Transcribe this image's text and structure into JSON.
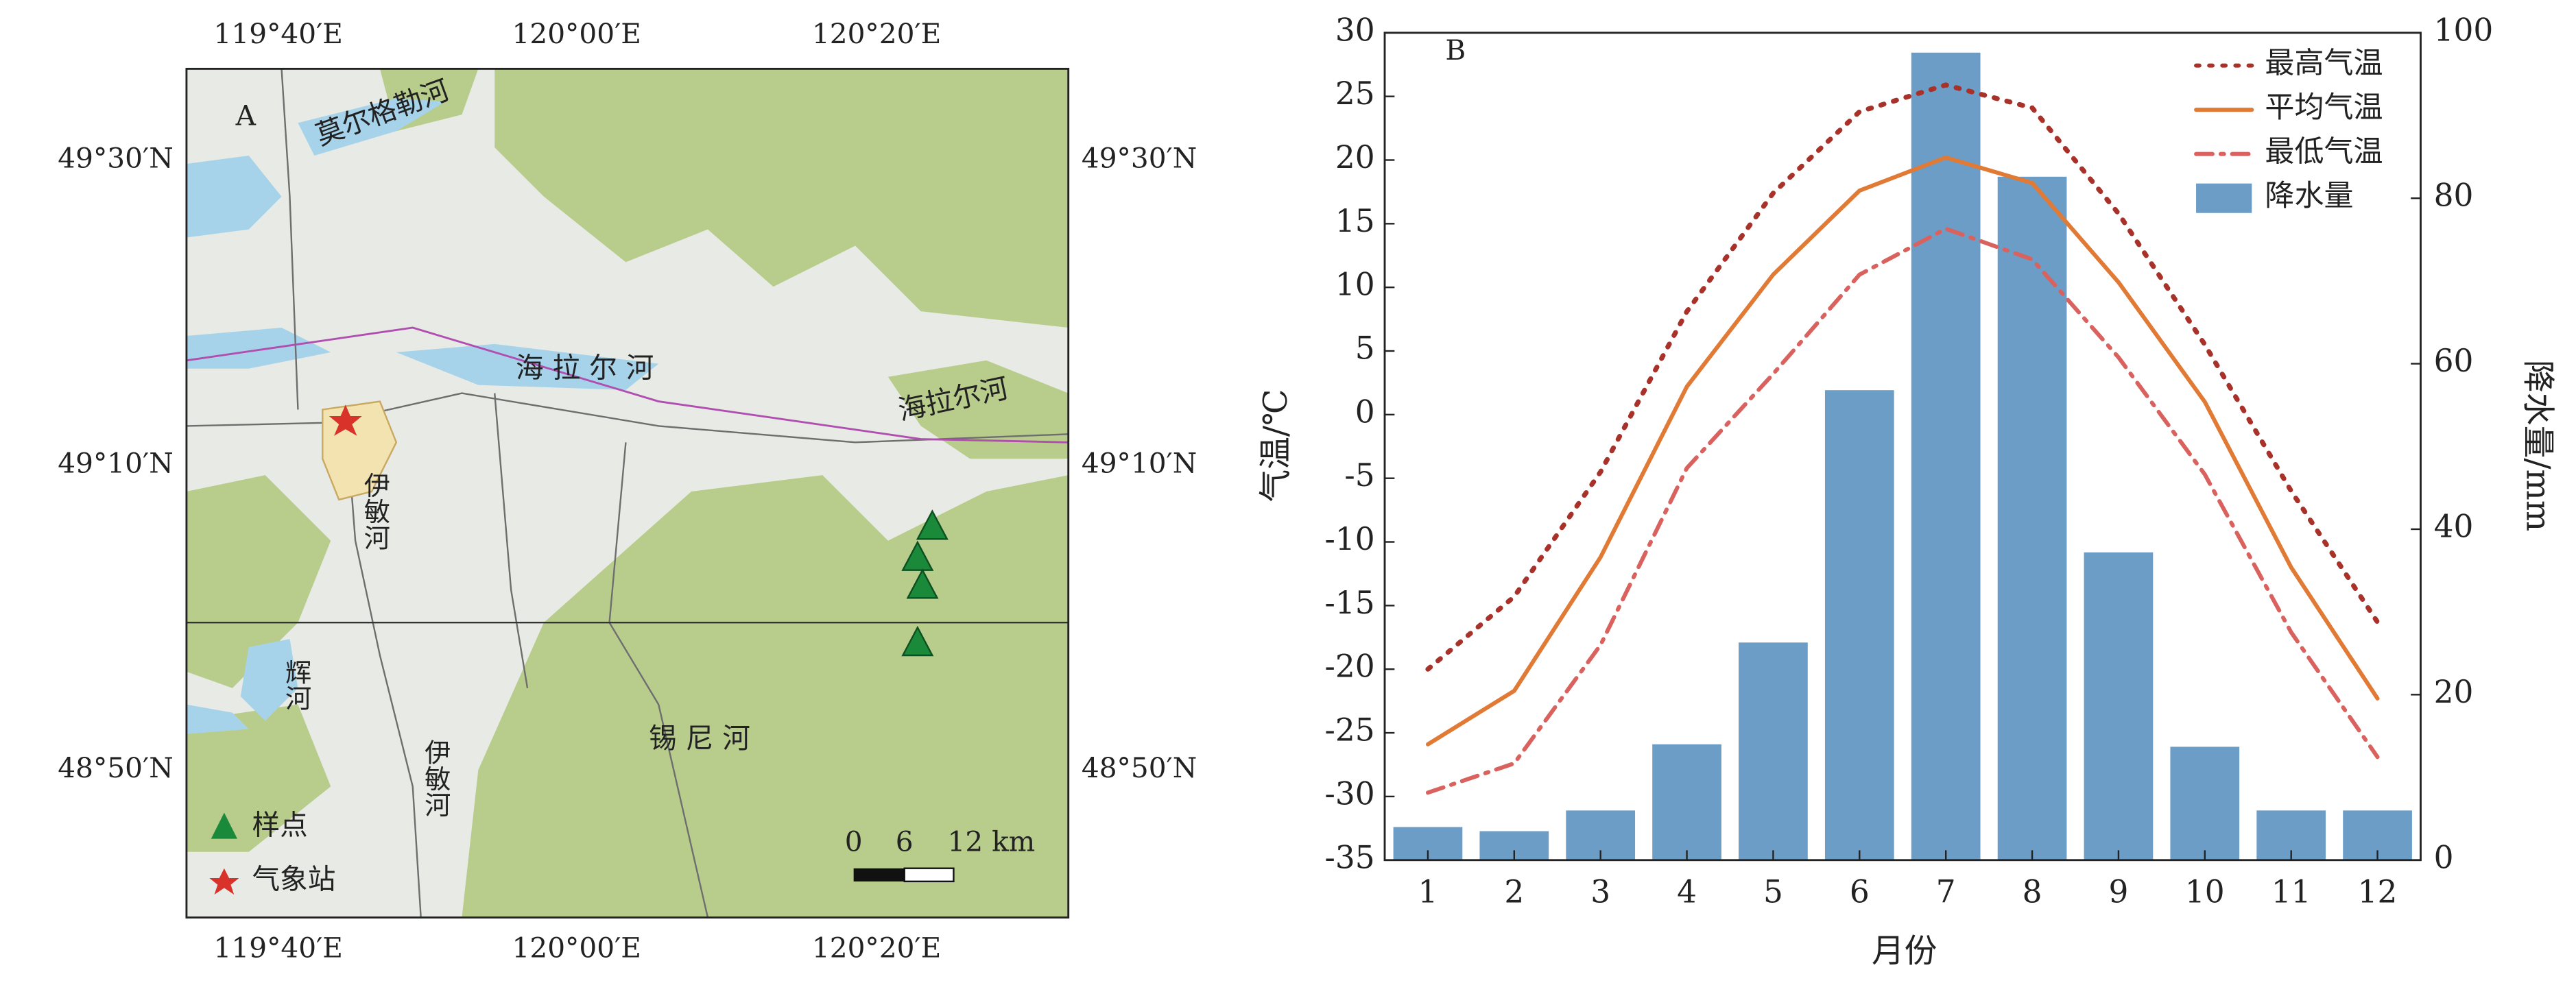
{
  "map": {
    "panel_label": "A",
    "lon_top": [
      "119°40′E",
      "120°00′E",
      "120°20′E"
    ],
    "lon_bottom": [
      "119°40′E",
      "120°00′E",
      "120°20′E"
    ],
    "lat_left": [
      "49°30′N",
      "49°10′N",
      "48°50′N"
    ],
    "lat_right": [
      "49°30′N",
      "49°10′N",
      "48°50′N"
    ],
    "labels": [
      "莫尔格勒河",
      "海 拉 尔 河",
      "海拉尔河",
      "伊敏河",
      "辉河",
      "伊敏河",
      "锡 尼 河"
    ],
    "legend": [
      "样点",
      "气象站"
    ],
    "scale": [
      "0",
      "6",
      "12 km"
    ]
  },
  "chart_data": {
    "type": "combo",
    "panel_label": "B",
    "x_label": "月份",
    "y_label": "气温/℃",
    "y2_label": "降水量/mm",
    "categories": [
      "1",
      "2",
      "3",
      "4",
      "5",
      "6",
      "7",
      "8",
      "9",
      "10",
      "11",
      "12"
    ],
    "ylim": [
      -35,
      30
    ],
    "yticks": [
      -35,
      -30,
      -25,
      -20,
      -15,
      -10,
      -5,
      0,
      5,
      10,
      15,
      20,
      25,
      30
    ],
    "y2lim": [
      0,
      100
    ],
    "y2ticks": [
      0,
      20,
      40,
      60,
      80,
      100
    ],
    "series": [
      {
        "name": "最高气温",
        "type": "line",
        "style": "dotted",
        "color": "#a8322a",
        "values": [
          -20,
          -14.3,
          -4.5,
          8.1,
          17.4,
          23.8,
          25.9,
          24.1,
          15.8,
          5.5,
          -6,
          -16.3
        ]
      },
      {
        "name": "平均气温",
        "type": "line",
        "style": "solid",
        "color": "#e07a35",
        "values": [
          -25.9,
          -21.7,
          -11.2,
          2.2,
          11,
          17.6,
          20.2,
          18.2,
          10.4,
          1,
          -12,
          -22.3
        ]
      },
      {
        "name": "最低气温",
        "type": "line",
        "style": "dashdot",
        "color": "#d9625f",
        "values": [
          -29.7,
          -27.4,
          -18.1,
          -4.2,
          3.2,
          11,
          14.6,
          12.2,
          4.5,
          -4.7,
          -17.1,
          -26.9
        ]
      },
      {
        "name": "降水量",
        "type": "bar",
        "axis": "y2",
        "color": "#6b9dc6",
        "values": [
          4,
          3.5,
          6,
          14,
          26.3,
          56.8,
          97.6,
          82.6,
          37.2,
          13.7,
          6,
          6
        ]
      }
    ]
  }
}
